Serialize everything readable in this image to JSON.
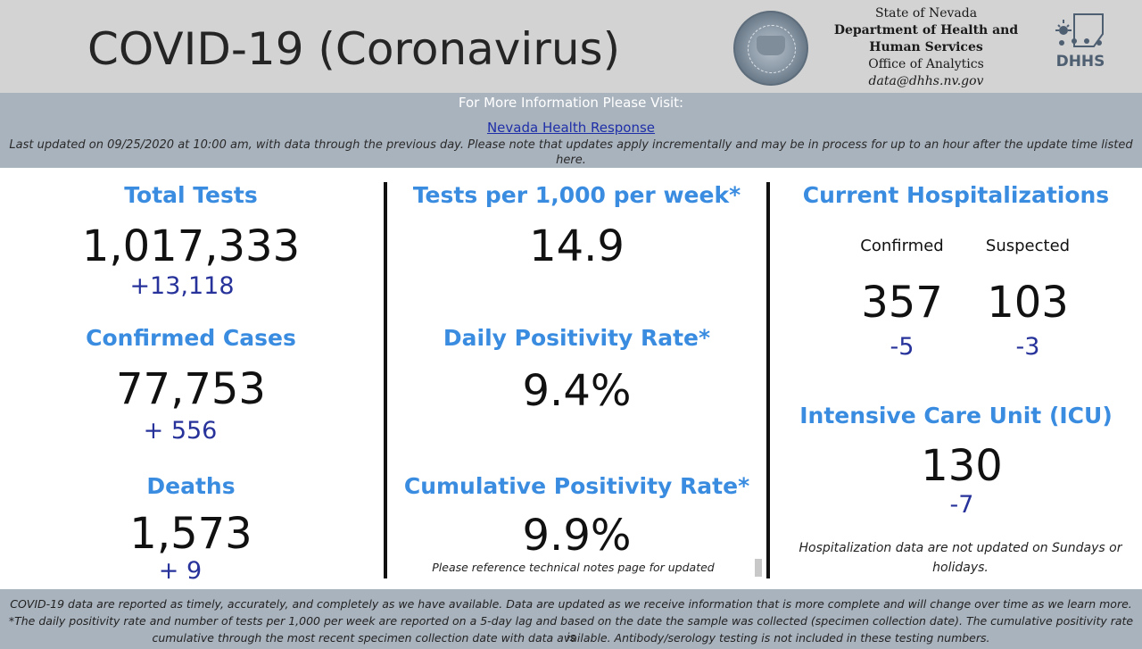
{
  "header": {
    "title": "COVID-19 (Coronavirus)",
    "agency_line1": "State of Nevada",
    "agency_line2": "Department of Health and",
    "agency_line3": "Human Services",
    "agency_line4": "Office of Analytics",
    "agency_email": "data@dhhs.nv.gov",
    "seal_icon": "nevada-state-seal-icon",
    "logo_icon": "dhhs-logo-icon",
    "logo_text": "DHHS"
  },
  "info": {
    "visit_text": "For More Information Please Visit:",
    "link_text": "Nevada Health Response",
    "updated_text": "Last updated on 09/25/2020 at 10:00 am, with data through the previous day.  Please note that updates apply incrementally and may be in process for up to an hour after the update time listed here."
  },
  "left": {
    "total_tests_label": "Total Tests",
    "total_tests_value": "1,017,333",
    "total_tests_delta": "+13,118",
    "confirmed_label": "Confirmed Cases",
    "confirmed_value": "77,753",
    "confirmed_delta": "+ 556",
    "deaths_label": "Deaths",
    "deaths_value": "1,573",
    "deaths_delta": "+ 9"
  },
  "middle": {
    "tests_per_label": "Tests per 1,000 per week*",
    "tests_per_value": "14.9",
    "daily_pos_label": "Daily Positivity Rate*",
    "daily_pos_value": "9.4%",
    "cum_pos_label": "Cumulative Positivity Rate*",
    "cum_pos_value": "9.9%",
    "reference_note": "Please reference technical notes page for updated"
  },
  "right": {
    "hosp_label": "Current Hospitalizations",
    "confirmed_sub": "Confirmed",
    "suspected_sub": "Suspected",
    "confirmed_value": "357",
    "suspected_value": "103",
    "confirmed_delta": "-5",
    "suspected_delta": "-3",
    "icu_label": "Intensive Care Unit (ICU)",
    "icu_value": "130",
    "icu_delta": "-7",
    "hosp_note": "Hospitalization data are not updated on Sundays or holidays."
  },
  "footer": {
    "line1": "COVID-19 data are reported as timely, accurately, and completely as we have available.  Data are updated as we receive information that is more complete and will change over time as we learn more.",
    "line2": "*The daily positivity rate and number of tests per 1,000 per week are reported on a 5-day lag and based on the date the sample was collected (specimen collection date).  The cumulative positivity rate is",
    "line3": "cumulative through the most recent specimen collection date with data available.  Antibody/serology testing is not included in these testing numbers."
  },
  "colors": {
    "header_bg": "#d3d3d3",
    "band_bg": "#a9b3be",
    "label_blue": "#3a8ce0",
    "delta_blue": "#27339a",
    "link_blue": "#1f2fa8"
  }
}
